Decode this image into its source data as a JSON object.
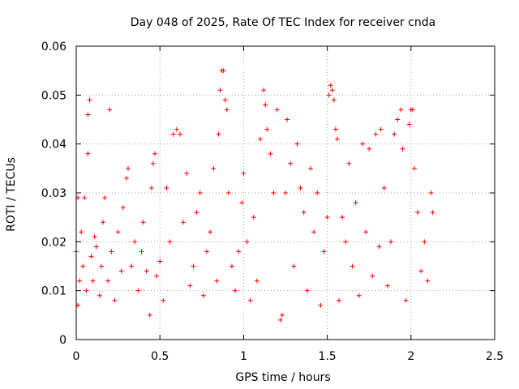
{
  "chart_data": {
    "type": "scatter",
    "title": "Day 048 of 2025, Rate Of TEC Index for receiver cnda",
    "xlabel": "GPS time / hours",
    "ylabel": "ROTI / TECUs",
    "xlim": [
      0,
      2.5
    ],
    "ylim": [
      0,
      0.06
    ],
    "xticks": [
      0,
      0.5,
      1,
      1.5,
      2,
      2.5
    ],
    "xtick_labels": [
      "0",
      "0.5",
      "1",
      "1.5",
      "2",
      "2.5"
    ],
    "yticks": [
      0,
      0.01,
      0.02,
      0.03,
      0.04,
      0.05,
      0.06
    ],
    "ytick_labels": [
      "0",
      "0.01",
      "0.02",
      "0.03",
      "0.04",
      "0.05",
      "0.06"
    ],
    "grid": true,
    "marker": "+",
    "color": "#ff0000",
    "series": [
      {
        "name": "ROTI",
        "x_range": [
          0,
          2.13
        ],
        "note": "dense scatter; representative points below",
        "points": [
          [
            0.0,
            0.018
          ],
          [
            0.01,
            0.007
          ],
          [
            0.01,
            0.029
          ],
          [
            0.02,
            0.012
          ],
          [
            0.03,
            0.022
          ],
          [
            0.04,
            0.015
          ],
          [
            0.05,
            0.029
          ],
          [
            0.06,
            0.01
          ],
          [
            0.07,
            0.046
          ],
          [
            0.07,
            0.038
          ],
          [
            0.08,
            0.049
          ],
          [
            0.09,
            0.017
          ],
          [
            0.1,
            0.012
          ],
          [
            0.11,
            0.021
          ],
          [
            0.12,
            0.019
          ],
          [
            0.14,
            0.009
          ],
          [
            0.15,
            0.015
          ],
          [
            0.16,
            0.024
          ],
          [
            0.17,
            0.029
          ],
          [
            0.19,
            0.012
          ],
          [
            0.2,
            0.047
          ],
          [
            0.21,
            0.018
          ],
          [
            0.23,
            0.008
          ],
          [
            0.25,
            0.022
          ],
          [
            0.27,
            0.014
          ],
          [
            0.28,
            0.027
          ],
          [
            0.3,
            0.033
          ],
          [
            0.31,
            0.035
          ],
          [
            0.33,
            0.015
          ],
          [
            0.35,
            0.02
          ],
          [
            0.37,
            0.01
          ],
          [
            0.39,
            0.018
          ],
          [
            0.4,
            0.024
          ],
          [
            0.42,
            0.014
          ],
          [
            0.44,
            0.005
          ],
          [
            0.45,
            0.031
          ],
          [
            0.46,
            0.036
          ],
          [
            0.47,
            0.038
          ],
          [
            0.48,
            0.013
          ],
          [
            0.5,
            0.016
          ],
          [
            0.52,
            0.008
          ],
          [
            0.54,
            0.031
          ],
          [
            0.56,
            0.02
          ],
          [
            0.58,
            0.042
          ],
          [
            0.6,
            0.043
          ],
          [
            0.62,
            0.042
          ],
          [
            0.64,
            0.024
          ],
          [
            0.66,
            0.034
          ],
          [
            0.68,
            0.011
          ],
          [
            0.7,
            0.015
          ],
          [
            0.72,
            0.026
          ],
          [
            0.74,
            0.03
          ],
          [
            0.76,
            0.009
          ],
          [
            0.78,
            0.018
          ],
          [
            0.8,
            0.022
          ],
          [
            0.82,
            0.035
          ],
          [
            0.84,
            0.012
          ],
          [
            0.85,
            0.042
          ],
          [
            0.86,
            0.051
          ],
          [
            0.87,
            0.055
          ],
          [
            0.88,
            0.055
          ],
          [
            0.89,
            0.049
          ],
          [
            0.9,
            0.047
          ],
          [
            0.91,
            0.03
          ],
          [
            0.93,
            0.015
          ],
          [
            0.95,
            0.01
          ],
          [
            0.97,
            0.018
          ],
          [
            0.99,
            0.028
          ],
          [
            1.0,
            0.034
          ],
          [
            1.02,
            0.02
          ],
          [
            1.04,
            0.008
          ],
          [
            1.06,
            0.025
          ],
          [
            1.08,
            0.012
          ],
          [
            1.1,
            0.041
          ],
          [
            1.12,
            0.051
          ],
          [
            1.13,
            0.048
          ],
          [
            1.14,
            0.043
          ],
          [
            1.16,
            0.038
          ],
          [
            1.18,
            0.03
          ],
          [
            1.2,
            0.047
          ],
          [
            1.22,
            0.004
          ],
          [
            1.23,
            0.005
          ],
          [
            1.25,
            0.03
          ],
          [
            1.26,
            0.045
          ],
          [
            1.28,
            0.036
          ],
          [
            1.3,
            0.015
          ],
          [
            1.32,
            0.04
          ],
          [
            1.34,
            0.031
          ],
          [
            1.36,
            0.026
          ],
          [
            1.38,
            0.01
          ],
          [
            1.4,
            0.035
          ],
          [
            1.42,
            0.022
          ],
          [
            1.44,
            0.03
          ],
          [
            1.46,
            0.007
          ],
          [
            1.48,
            0.018
          ],
          [
            1.5,
            0.025
          ],
          [
            1.51,
            0.05
          ],
          [
            1.52,
            0.052
          ],
          [
            1.53,
            0.051
          ],
          [
            1.54,
            0.049
          ],
          [
            1.55,
            0.043
          ],
          [
            1.56,
            0.041
          ],
          [
            1.57,
            0.008
          ],
          [
            1.59,
            0.025
          ],
          [
            1.61,
            0.02
          ],
          [
            1.63,
            0.036
          ],
          [
            1.65,
            0.015
          ],
          [
            1.67,
            0.028
          ],
          [
            1.69,
            0.009
          ],
          [
            1.71,
            0.04
          ],
          [
            1.73,
            0.022
          ],
          [
            1.75,
            0.039
          ],
          [
            1.77,
            0.013
          ],
          [
            1.79,
            0.042
          ],
          [
            1.81,
            0.019
          ],
          [
            1.82,
            0.043
          ],
          [
            1.84,
            0.031
          ],
          [
            1.86,
            0.011
          ],
          [
            1.88,
            0.02
          ],
          [
            1.9,
            0.042
          ],
          [
            1.92,
            0.045
          ],
          [
            1.94,
            0.047
          ],
          [
            1.95,
            0.039
          ],
          [
            1.97,
            0.008
          ],
          [
            1.99,
            0.044
          ],
          [
            2.0,
            0.047
          ],
          [
            2.01,
            0.047
          ],
          [
            2.02,
            0.035
          ],
          [
            2.04,
            0.026
          ],
          [
            2.06,
            0.014
          ],
          [
            2.08,
            0.02
          ],
          [
            2.1,
            0.012
          ],
          [
            2.12,
            0.03
          ],
          [
            2.13,
            0.026
          ]
        ]
      }
    ]
  }
}
